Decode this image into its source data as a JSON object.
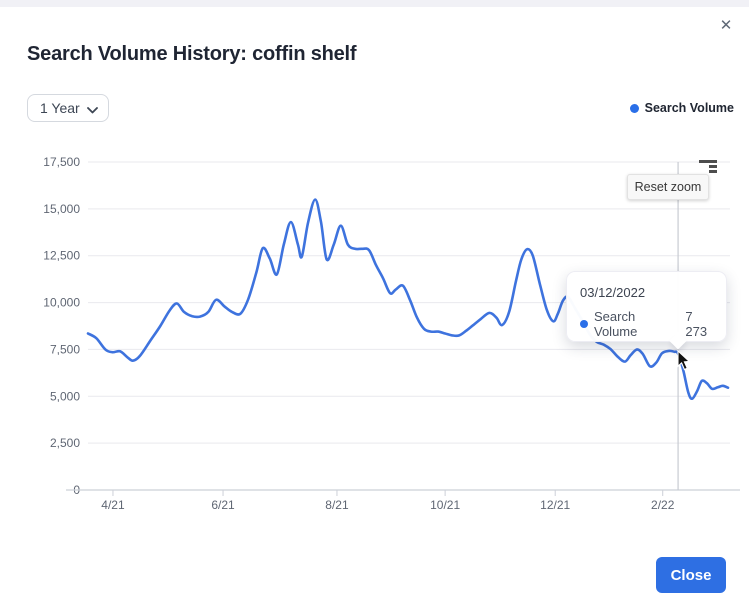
{
  "modal": {
    "title": "Search Volume History: coffin shelf",
    "close_icon": "✕"
  },
  "controls": {
    "range_selector": {
      "value": "1 Year"
    },
    "legend": {
      "label": "Search Volume",
      "dot_color": "#2a6fe8"
    }
  },
  "chart_ui": {
    "reset_zoom_label": "Reset zoom",
    "menu_icon": "context-menu-icon"
  },
  "tooltip": {
    "date": "03/12/2022",
    "series_label": "Search Volume",
    "value": "7 273"
  },
  "footer": {
    "close_label": "Close"
  },
  "chart_data": {
    "type": "line",
    "title": "Search Volume History: coffin shelf",
    "legend_position": "top-right",
    "grid": "horizontal",
    "ylim": [
      0,
      17500
    ],
    "y_tick_step": 2500,
    "y_tick_labels": [
      "0",
      "2,500",
      "5,000",
      "7,500",
      "10,000",
      "12,500",
      "15,000",
      "17,500"
    ],
    "x_ticks": [
      {
        "label": "4/21",
        "pos": 0.039
      },
      {
        "label": "6/21",
        "pos": 0.211
      },
      {
        "label": "8/21",
        "pos": 0.389
      },
      {
        "label": "10/21",
        "pos": 0.558
      },
      {
        "label": "12/21",
        "pos": 0.73
      },
      {
        "label": "2/22",
        "pos": 0.898
      }
    ],
    "crosshair_pos": 0.922,
    "highlighted_point": {
      "date": "03/12/2022",
      "value": 7273
    },
    "series": [
      {
        "name": "Search Volume",
        "color": "#3e73de",
        "points": [
          [
            0.0,
            8350
          ],
          [
            0.013,
            8100
          ],
          [
            0.027,
            7500
          ],
          [
            0.038,
            7350
          ],
          [
            0.05,
            7400
          ],
          [
            0.061,
            7100
          ],
          [
            0.07,
            6900
          ],
          [
            0.081,
            7150
          ],
          [
            0.097,
            7950
          ],
          [
            0.113,
            8750
          ],
          [
            0.128,
            9600
          ],
          [
            0.139,
            9950
          ],
          [
            0.15,
            9500
          ],
          [
            0.163,
            9270
          ],
          [
            0.175,
            9250
          ],
          [
            0.188,
            9500
          ],
          [
            0.2,
            10150
          ],
          [
            0.213,
            9800
          ],
          [
            0.225,
            9500
          ],
          [
            0.238,
            9400
          ],
          [
            0.25,
            10150
          ],
          [
            0.263,
            11600
          ],
          [
            0.273,
            12900
          ],
          [
            0.284,
            12350
          ],
          [
            0.295,
            11500
          ],
          [
            0.306,
            13100
          ],
          [
            0.317,
            14300
          ],
          [
            0.328,
            13100
          ],
          [
            0.334,
            12450
          ],
          [
            0.344,
            14300
          ],
          [
            0.355,
            15500
          ],
          [
            0.364,
            14300
          ],
          [
            0.373,
            12300
          ],
          [
            0.384,
            13100
          ],
          [
            0.395,
            14100
          ],
          [
            0.406,
            13100
          ],
          [
            0.417,
            12870
          ],
          [
            0.428,
            12870
          ],
          [
            0.439,
            12800
          ],
          [
            0.45,
            12000
          ],
          [
            0.461,
            11300
          ],
          [
            0.472,
            10500
          ],
          [
            0.481,
            10700
          ],
          [
            0.492,
            10900
          ],
          [
            0.503,
            10150
          ],
          [
            0.514,
            9200
          ],
          [
            0.525,
            8600
          ],
          [
            0.536,
            8450
          ],
          [
            0.547,
            8450
          ],
          [
            0.558,
            8350
          ],
          [
            0.569,
            8250
          ],
          [
            0.58,
            8250
          ],
          [
            0.591,
            8500
          ],
          [
            0.602,
            8800
          ],
          [
            0.613,
            9100
          ],
          [
            0.627,
            9450
          ],
          [
            0.638,
            9200
          ],
          [
            0.647,
            8800
          ],
          [
            0.658,
            9500
          ],
          [
            0.669,
            11200
          ],
          [
            0.677,
            12300
          ],
          [
            0.686,
            12850
          ],
          [
            0.695,
            12500
          ],
          [
            0.706,
            11000
          ],
          [
            0.717,
            9600
          ],
          [
            0.727,
            9000
          ],
          [
            0.734,
            9400
          ],
          [
            0.742,
            10100
          ],
          [
            0.75,
            10300
          ],
          [
            0.761,
            9700
          ],
          [
            0.773,
            9000
          ],
          [
            0.784,
            8300
          ],
          [
            0.795,
            7900
          ],
          [
            0.806,
            7750
          ],
          [
            0.817,
            7500
          ],
          [
            0.828,
            7100
          ],
          [
            0.839,
            6850
          ],
          [
            0.848,
            7200
          ],
          [
            0.858,
            7500
          ],
          [
            0.867,
            7250
          ],
          [
            0.878,
            6600
          ],
          [
            0.888,
            6800
          ],
          [
            0.897,
            7300
          ],
          [
            0.908,
            7420
          ],
          [
            0.916,
            7380
          ],
          [
            0.922,
            7273
          ],
          [
            0.93,
            6400
          ],
          [
            0.938,
            5200
          ],
          [
            0.944,
            4870
          ],
          [
            0.952,
            5300
          ],
          [
            0.959,
            5820
          ],
          [
            0.967,
            5700
          ],
          [
            0.975,
            5400
          ],
          [
            0.984,
            5480
          ],
          [
            0.992,
            5560
          ],
          [
            1.0,
            5460
          ]
        ]
      }
    ]
  }
}
